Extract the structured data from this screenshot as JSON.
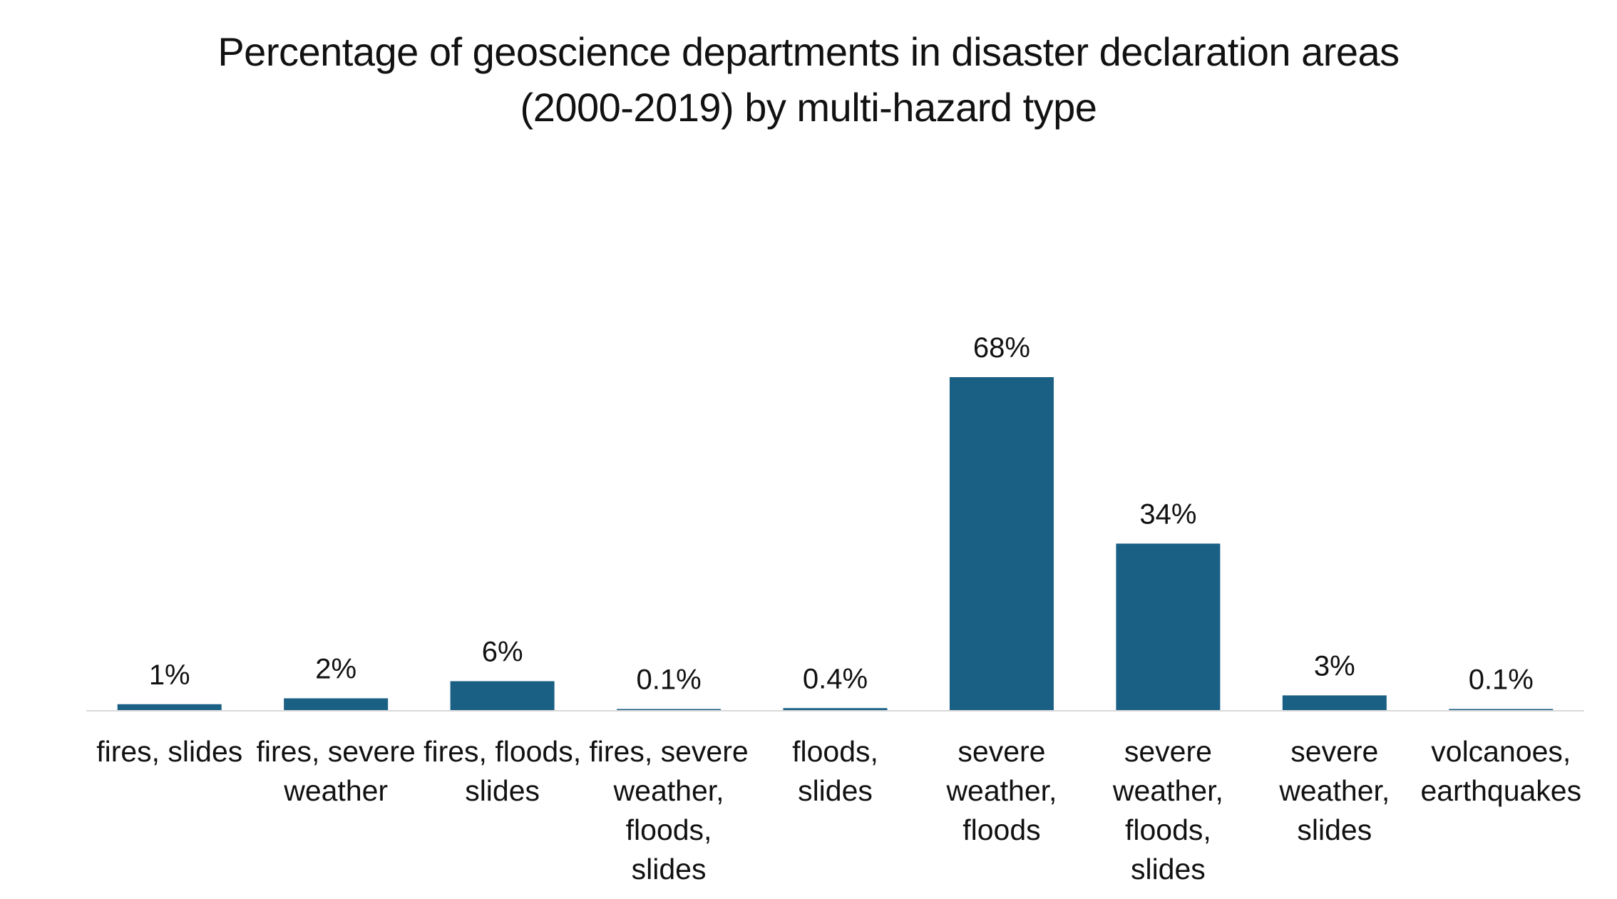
{
  "chart_data": {
    "type": "bar",
    "title_lines": [
      "Percentage of geoscience departments in disaster declaration areas",
      "(2000-2019) by multi-hazard type"
    ],
    "xlabel": "",
    "ylabel": "",
    "ylim": [
      0,
      68
    ],
    "grid": false,
    "legend": "none",
    "categories": [
      [
        "fires, slides"
      ],
      [
        "fires, severe",
        "weather"
      ],
      [
        "fires, floods,",
        "slides"
      ],
      [
        "fires, severe",
        "weather,",
        "floods,",
        "slides"
      ],
      [
        "floods,",
        "slides"
      ],
      [
        "severe",
        "weather,",
        "floods"
      ],
      [
        "severe",
        "weather,",
        "floods,",
        "slides"
      ],
      [
        "severe",
        "weather,",
        "slides"
      ],
      [
        "volcanoes,",
        "earthquakes"
      ]
    ],
    "values": [
      1.2,
      2.4,
      5.9,
      0.1,
      0.4,
      68,
      34,
      3,
      0.1
    ],
    "data_labels": [
      "1%",
      "2%",
      "6%",
      "0.1%",
      "0.4%",
      "68%",
      "34%",
      "3%",
      "0.1%"
    ],
    "colors": {
      "bar": "#1a5f84",
      "axis": "#d9d9d9",
      "text": "#111111"
    }
  }
}
